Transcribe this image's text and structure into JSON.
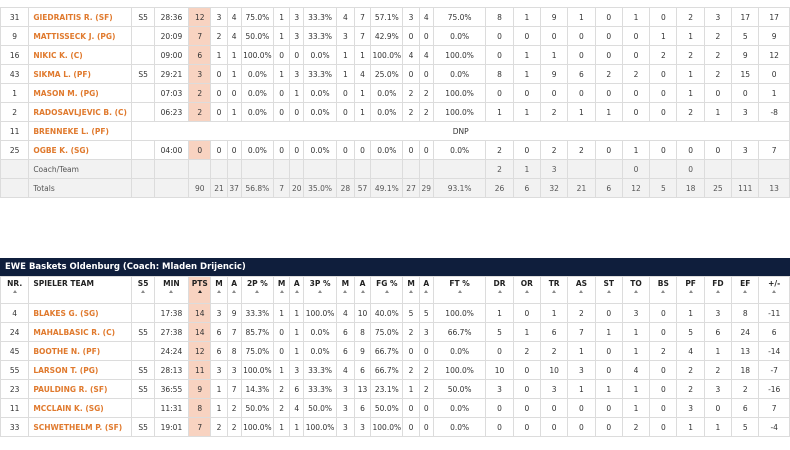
{
  "top_table": {
    "rows": [
      [
        "31",
        "GIEDRAITIS R. (SF)",
        "S5",
        "28:36",
        "12",
        "3",
        "4",
        "75.0%",
        "1",
        "3",
        "33.3%",
        "4",
        "7",
        "57.1%",
        "3",
        "4",
        "75.0%",
        "8",
        "1",
        "9",
        "1",
        "0",
        "1",
        "0",
        "2",
        "3",
        "17",
        "17"
      ],
      [
        "9",
        "MATTISSECK J. (PG)",
        null,
        "20:09",
        "7",
        "2",
        "4",
        "50.0%",
        "1",
        "3",
        "33.3%",
        "3",
        "7",
        "42.9%",
        "0",
        "0",
        "0.0%",
        "0",
        "0",
        "0",
        "0",
        "0",
        "0",
        "1",
        "1",
        "2",
        "5",
        "9"
      ],
      [
        "16",
        "NIKIC K. (C)",
        null,
        "09:00",
        "6",
        "1",
        "1",
        "100.0%",
        "0",
        "0",
        "0.0%",
        "1",
        "1",
        "100.0%",
        "4",
        "4",
        "100.0%",
        "0",
        "1",
        "1",
        "0",
        "0",
        "0",
        "2",
        "2",
        "2",
        "9",
        "12"
      ],
      [
        "43",
        "SIKMA L. (PF)",
        "S5",
        "29:21",
        "3",
        "0",
        "1",
        "0.0%",
        "1",
        "3",
        "33.3%",
        "1",
        "4",
        "25.0%",
        "0",
        "0",
        "0.0%",
        "8",
        "1",
        "9",
        "6",
        "2",
        "2",
        "0",
        "1",
        "2",
        "15",
        "0"
      ],
      [
        "1",
        "MASON M. (PG)",
        null,
        "07:03",
        "2",
        "0",
        "0",
        "0.0%",
        "0",
        "1",
        "0.0%",
        "0",
        "1",
        "0.0%",
        "2",
        "2",
        "100.0%",
        "0",
        "0",
        "0",
        "0",
        "0",
        "0",
        "0",
        "1",
        "0",
        "0",
        "1"
      ],
      [
        "2",
        "RADOSAVLJEVIC B. (C)",
        null,
        "06:23",
        "2",
        "0",
        "1",
        "0.0%",
        "0",
        "0",
        "0.0%",
        "0",
        "1",
        "0.0%",
        "2",
        "2",
        "100.0%",
        "1",
        "1",
        "2",
        "1",
        "1",
        "0",
        "0",
        "2",
        "1",
        "3",
        "-8"
      ],
      [
        "11",
        "BRENNEKE L. (PF)",
        "DNP"
      ],
      [
        "25",
        "OGBE K. (SG)",
        null,
        "04:00",
        "0",
        "0",
        "0",
        "0.0%",
        "0",
        "0",
        "0.0%",
        "0",
        "0",
        "0.0%",
        "0",
        "0",
        "0.0%",
        "2",
        "0",
        "2",
        "2",
        "0",
        "1",
        "0",
        "0",
        "0",
        "3",
        "7"
      ],
      [
        null,
        "Coach/Team",
        null,
        null,
        null,
        null,
        null,
        null,
        null,
        null,
        null,
        null,
        null,
        null,
        null,
        null,
        null,
        "2",
        "1",
        "3",
        null,
        null,
        "0",
        null,
        "0",
        null,
        null,
        null
      ],
      [
        null,
        "Totals",
        null,
        null,
        "90",
        "21",
        "37",
        "56.8%",
        "7",
        "20",
        "35.0%",
        "28",
        "57",
        "49.1%",
        "27",
        "29",
        "93.1%",
        "26",
        "6",
        "32",
        "21",
        "6",
        "12",
        "5",
        "18",
        "25",
        "111",
        "13"
      ]
    ]
  },
  "bottom_table": {
    "title": "EWE Baskets Oldenburg (Coach: Mladen Drijencic)",
    "headers": [
      "NR.",
      "SPIELER TEAM",
      "S5",
      "MIN",
      "PTS",
      "M",
      "A",
      "2P %",
      "M",
      "A",
      "3P %",
      "M",
      "A",
      "FG %",
      "M",
      "A",
      "FT %",
      "DR",
      "OR",
      "TR",
      "AS",
      "ST",
      "TO",
      "BS",
      "PF",
      "FD",
      "EF",
      "+/-"
    ],
    "rows": [
      [
        "4",
        "BLAKES G. (SG)",
        null,
        "17:38",
        "14",
        "3",
        "9",
        "33.3%",
        "1",
        "1",
        "100.0%",
        "4",
        "10",
        "40.0%",
        "5",
        "5",
        "100.0%",
        "1",
        "0",
        "1",
        "2",
        "0",
        "3",
        "0",
        "1",
        "3",
        "8",
        "-11"
      ],
      [
        "24",
        "MAHALBASIC R. (C)",
        "S5",
        "27:38",
        "14",
        "6",
        "7",
        "85.7%",
        "0",
        "1",
        "0.0%",
        "6",
        "8",
        "75.0%",
        "2",
        "3",
        "66.7%",
        "5",
        "1",
        "6",
        "7",
        "1",
        "1",
        "0",
        "5",
        "6",
        "24",
        "6"
      ],
      [
        "45",
        "BOOTHE N. (PF)",
        null,
        "24:24",
        "12",
        "6",
        "8",
        "75.0%",
        "0",
        "1",
        "0.0%",
        "6",
        "9",
        "66.7%",
        "0",
        "0",
        "0.0%",
        "0",
        "2",
        "2",
        "1",
        "0",
        "1",
        "2",
        "4",
        "1",
        "13",
        "-14"
      ],
      [
        "55",
        "LARSON T. (PG)",
        "S5",
        "28:13",
        "11",
        "3",
        "3",
        "100.0%",
        "1",
        "3",
        "33.3%",
        "4",
        "6",
        "66.7%",
        "2",
        "2",
        "100.0%",
        "10",
        "0",
        "10",
        "3",
        "0",
        "4",
        "0",
        "2",
        "2",
        "18",
        "-7"
      ],
      [
        "23",
        "PAULDING R. (SF)",
        "S5",
        "36:55",
        "9",
        "1",
        "7",
        "14.3%",
        "2",
        "6",
        "33.3%",
        "3",
        "13",
        "23.1%",
        "1",
        "2",
        "50.0%",
        "3",
        "0",
        "3",
        "1",
        "1",
        "1",
        "0",
        "2",
        "3",
        "2",
        "-16"
      ],
      [
        "11",
        "MCCLAIN K. (SG)",
        null,
        "11:31",
        "8",
        "1",
        "2",
        "50.0%",
        "2",
        "4",
        "50.0%",
        "3",
        "6",
        "50.0%",
        "0",
        "0",
        "0.0%",
        "0",
        "0",
        "0",
        "0",
        "0",
        "1",
        "0",
        "3",
        "0",
        "6",
        "7"
      ],
      [
        "33",
        "SCHWETHELM P. (SF)",
        "S5",
        "19:01",
        "7",
        "2",
        "2",
        "100.0%",
        "1",
        "1",
        "100.0%",
        "3",
        "3",
        "100.0%",
        "0",
        "0",
        "0.0%",
        "0",
        "0",
        "0",
        "0",
        "0",
        "2",
        "0",
        "1",
        "1",
        "5",
        "-4"
      ]
    ]
  }
}
